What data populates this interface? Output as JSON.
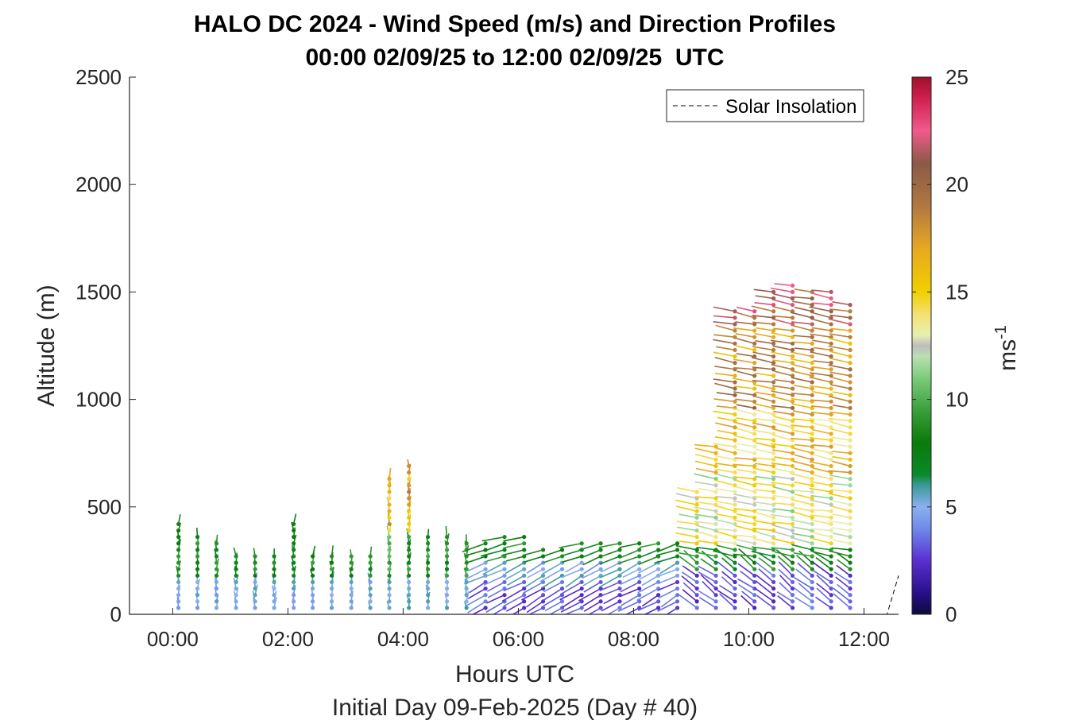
{
  "chart_data": {
    "type": "wind_barb_profile",
    "title": "HALO DC 2024 - Wind Speed (m/s) and Direction Profiles",
    "subtitle": "00:00 02/09/25 to 12:00 02/09/25  UTC",
    "xlabel": "Hours UTC",
    "ylabel": "Altitude (m)",
    "footer": "Initial Day 09-Feb-2025 (Day # 40)",
    "xlim": [
      -0.75,
      12.6
    ],
    "ylim": [
      0,
      2500
    ],
    "x_ticks": [
      0,
      2,
      4,
      6,
      8,
      10,
      12
    ],
    "x_tick_labels": [
      "00:00",
      "02:00",
      "04:00",
      "06:00",
      "08:00",
      "10:00",
      "12:00"
    ],
    "y_ticks": [
      0,
      500,
      1000,
      1500,
      2000,
      2500
    ],
    "y_tick_labels": [
      "0",
      "500",
      "1000",
      "1500",
      "2000",
      "2500"
    ],
    "legend": {
      "label": "Solar Insolation",
      "location": "top-right",
      "line_style": "dashed"
    },
    "colorbar": {
      "label": "ms",
      "label_exponent": "-1",
      "range": [
        0,
        25
      ],
      "ticks": [
        0,
        5,
        10,
        15,
        20,
        25
      ],
      "tick_labels": [
        "0",
        "5",
        "10",
        "15",
        "20",
        "25"
      ],
      "stops": [
        [
          0,
          "#0b0b3a"
        ],
        [
          1,
          "#2a0f8a"
        ],
        [
          2.5,
          "#5a2fd0"
        ],
        [
          4,
          "#6f8be8"
        ],
        [
          5,
          "#8ab0f0"
        ],
        [
          6,
          "#3a9a9a"
        ],
        [
          6.5,
          "#0a8a2a"
        ],
        [
          8,
          "#0a7a0a"
        ],
        [
          9.5,
          "#3aa03a"
        ],
        [
          11,
          "#7ccc7c"
        ],
        [
          12,
          "#b8e0b0"
        ],
        [
          12.5,
          "#bdbdbd"
        ],
        [
          13,
          "#e8f0b0"
        ],
        [
          14,
          "#f5e070"
        ],
        [
          15,
          "#f0d000"
        ],
        [
          17,
          "#e8a820"
        ],
        [
          19,
          "#b07840"
        ],
        [
          21,
          "#8a5a48"
        ],
        [
          22.5,
          "#f05a8a"
        ],
        [
          24,
          "#d02050"
        ],
        [
          25,
          "#a0102a"
        ]
      ]
    },
    "solar_insolation": {
      "x": [
        -0.75,
        12.4,
        12.6
      ],
      "y": [
        0,
        0,
        180
      ]
    },
    "profile_times_hr": [
      0.1,
      0.43,
      0.76,
      1.1,
      1.43,
      1.76,
      2.1,
      2.43,
      2.76,
      3.1,
      3.43,
      3.76,
      4.1,
      4.43,
      4.76,
      5.1,
      5.43,
      5.76,
      6.1,
      6.43,
      6.76,
      7.1,
      7.43,
      7.76,
      8.1,
      8.43,
      8.76,
      9.1,
      9.43,
      9.76,
      10.1,
      10.43,
      10.76,
      11.1,
      11.43,
      11.76
    ],
    "profile_top_altitudes_m": [
      420,
      375,
      335,
      275,
      275,
      275,
      420,
      275,
      275,
      275,
      275,
      650,
      700,
      360,
      360,
      350,
      345,
      360,
      375,
      310,
      325,
      340,
      345,
      345,
      345,
      345,
      350,
      580,
      800,
      1420,
      1425,
      1520,
      1550,
      1500,
      1500,
      1460
    ],
    "range_gate_spacing_m": 30,
    "lowest_gate_m": 30,
    "speed_regimes_ms": [
      {
        "altitude_range_m": [
          0,
          200
        ],
        "before_9h": "4-6",
        "after_9h": "2-4"
      },
      {
        "altitude_range_m": [
          200,
          400
        ],
        "before_9h": "7-9",
        "after_9h": "6-9"
      },
      {
        "altitude_range_m": [
          400,
          900
        ],
        "after_9h": "12-16"
      },
      {
        "altitude_range_m": [
          900,
          1500
        ],
        "after_9h": "16-22"
      }
    ]
  }
}
